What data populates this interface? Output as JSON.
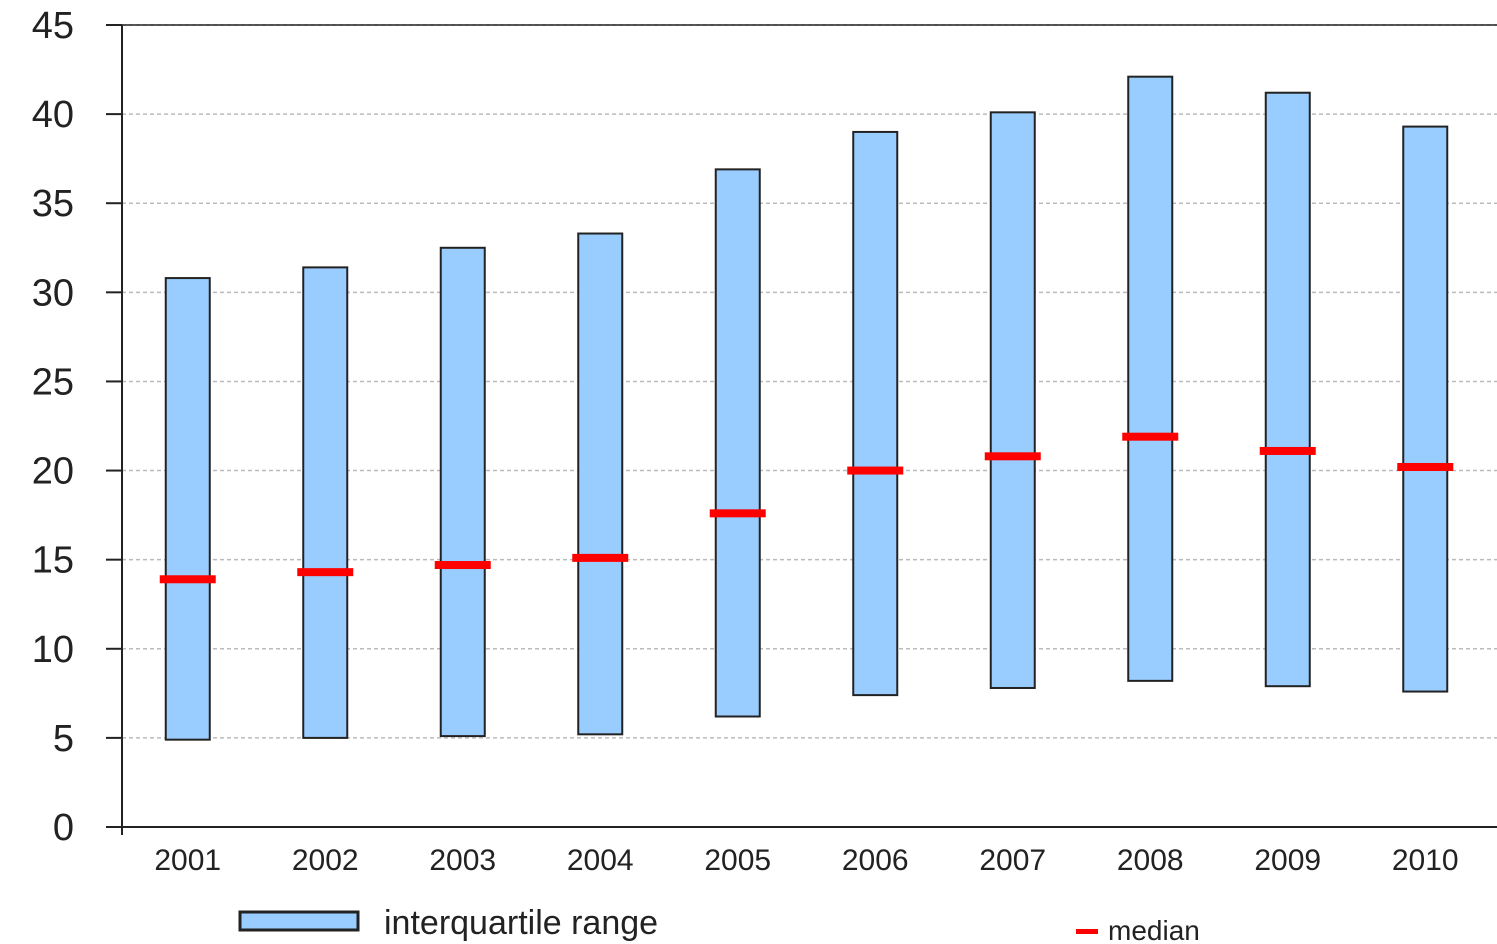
{
  "chart_data": {
    "type": "bar",
    "subtype": "floating-range-with-median",
    "title": "",
    "xlabel": "",
    "ylabel": "",
    "categories": [
      "2001",
      "2002",
      "2003",
      "2004",
      "2005",
      "2006",
      "2007",
      "2008",
      "2009",
      "2010"
    ],
    "ylim": [
      0,
      45
    ],
    "yticks": [
      0,
      5,
      10,
      15,
      20,
      25,
      30,
      35,
      40,
      45
    ],
    "grid": true,
    "legend_position": "bottom",
    "series": [
      {
        "name": "interquartile range",
        "kind": "range",
        "color": "#99ccff",
        "low": [
          4.9,
          5.0,
          5.1,
          5.2,
          6.2,
          7.4,
          7.8,
          8.2,
          7.9,
          7.6
        ],
        "high": [
          30.8,
          31.4,
          32.5,
          33.3,
          36.9,
          39.0,
          40.1,
          42.1,
          41.2,
          39.3
        ]
      },
      {
        "name": "median",
        "kind": "marker",
        "color": "#ff0000",
        "values": [
          13.9,
          14.3,
          14.7,
          15.1,
          17.6,
          20.0,
          20.8,
          21.9,
          21.1,
          20.2
        ]
      }
    ]
  }
}
